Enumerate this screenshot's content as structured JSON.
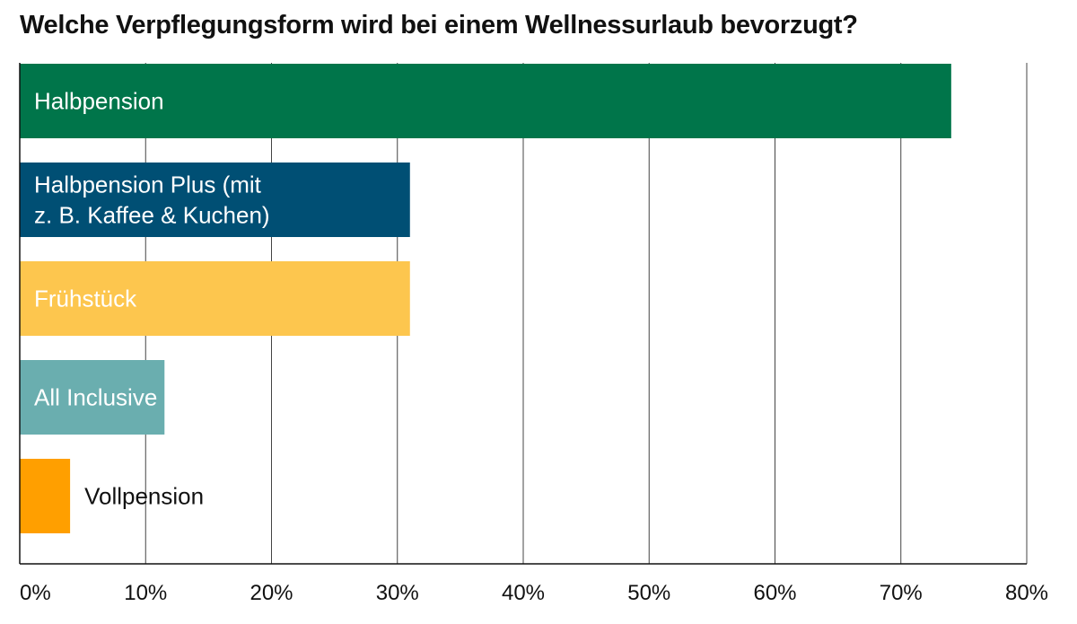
{
  "chart_data": {
    "type": "bar",
    "orientation": "horizontal",
    "title": "Welche Verpflegungsform wird bei einem Wellnessurlaub bevorzugt?",
    "categories": [
      [
        "Halbpension"
      ],
      [
        "Halbpension Plus (mit",
        "z. B. Kaffee & Kuchen)"
      ],
      [
        "Frühstück"
      ],
      [
        "All Inclusive"
      ],
      [
        "Vollpension"
      ]
    ],
    "values": [
      74,
      31,
      31,
      11.5,
      4
    ],
    "unit": "%",
    "xlim": [
      0,
      80
    ],
    "x_ticks": [
      0,
      10,
      20,
      30,
      40,
      50,
      60,
      70,
      80
    ],
    "x_tick_labels": [
      "0%",
      "10%",
      "20%",
      "30%",
      "40%",
      "50%",
      "60%",
      "70%",
      "80%"
    ],
    "colors": [
      "#00754A",
      "#004F74",
      "#FDC64E",
      "#6AAEAF",
      "#FF9F00"
    ],
    "label_colors": [
      "#ffffff",
      "#ffffff",
      "#ffffff",
      "#ffffff",
      "#111111"
    ],
    "label_position": [
      "inside",
      "inside",
      "inside",
      "inside",
      "outside"
    ],
    "grid": true,
    "legend": false
  }
}
